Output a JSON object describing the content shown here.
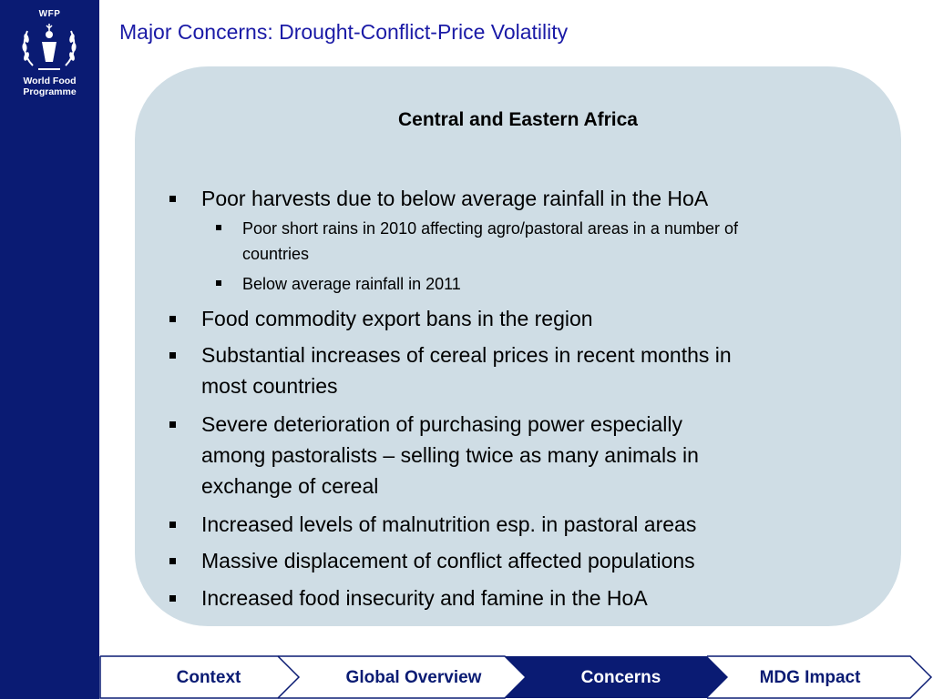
{
  "logo": {
    "abbr": "WFP",
    "name_line1": "World Food",
    "name_line2": "Programme"
  },
  "title": "Major Concerns: Drought-Conflict-Price Volatility",
  "panel": {
    "heading": "Central and Eastern Africa",
    "bullets": [
      {
        "text": "Poor harvests due to below average rainfall in the HoA"
      },
      {
        "text": "Poor short rains in 2010 affecting agro/pastoral areas in a number of",
        "text2": "countries"
      },
      {
        "text": "Below average rainfall in 2011"
      },
      {
        "text": "Food commodity export bans in the region"
      },
      {
        "text": "Substantial increases of cereal prices in recent months in",
        "text2": "most countries"
      },
      {
        "text": "Severe deterioration of purchasing power especially",
        "text2": "among pastoralists – selling twice as many animals in",
        "text3": "exchange of cereal"
      },
      {
        "text": "Increased levels of malnutrition esp. in pastoral areas"
      },
      {
        "text": "Massive displacement of conflict affected populations"
      },
      {
        "text": "Increased food insecurity and famine in the HoA"
      }
    ]
  },
  "nav": {
    "active": "Concerns",
    "tabs": [
      {
        "label": "Context"
      },
      {
        "label": "Global Overview"
      },
      {
        "label": "Concerns"
      },
      {
        "label": "MDG Impact"
      }
    ]
  },
  "colors": {
    "sidebar": "#0a1b73",
    "title": "#1a1aa6",
    "panel": "#cfdde5",
    "nav_active": "#0a1b73",
    "nav_text": "#0a1b73"
  }
}
